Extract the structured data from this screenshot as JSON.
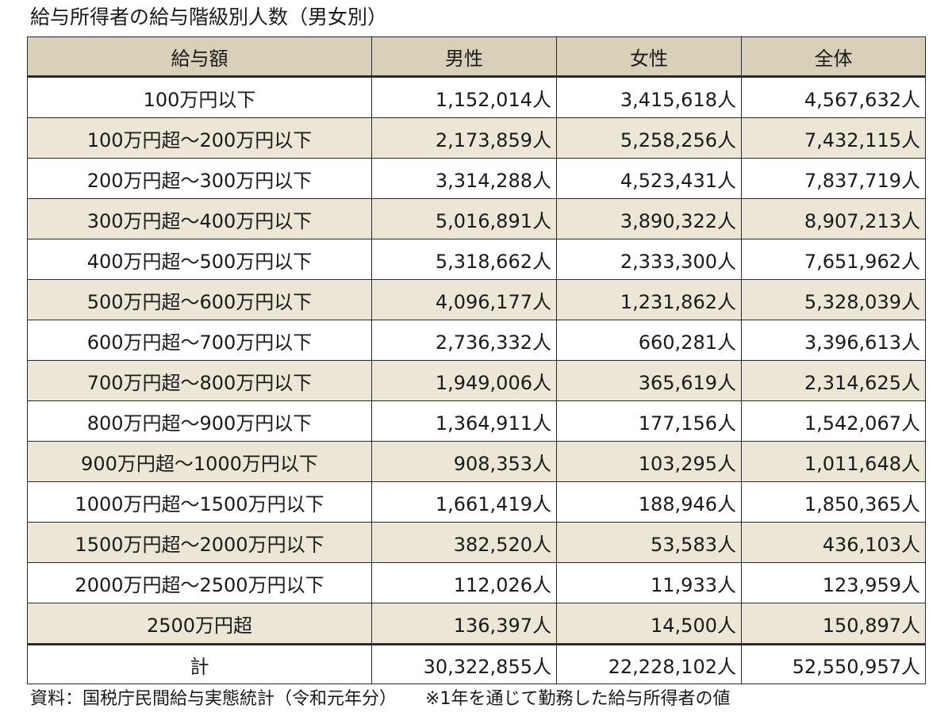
{
  "title": "給与所得者の給与階級別人数（男女別）",
  "table": {
    "headers": [
      "給与額",
      "男性",
      "女性",
      "全体"
    ],
    "rows": [
      {
        "label": "100万円以下",
        "male": "1,152,014人",
        "female": "3,415,618人",
        "total": "4,567,632人"
      },
      {
        "label": "100万円超～200万円以下",
        "male": "2,173,859人",
        "female": "5,258,256人",
        "total": "7,432,115人"
      },
      {
        "label": "200万円超～300万円以下",
        "male": "3,314,288人",
        "female": "4,523,431人",
        "total": "7,837,719人"
      },
      {
        "label": "300万円超～400万円以下",
        "male": "5,016,891人",
        "female": "3,890,322人",
        "total": "8,907,213人"
      },
      {
        "label": "400万円超～500万円以下",
        "male": "5,318,662人",
        "female": "2,333,300人",
        "total": "7,651,962人"
      },
      {
        "label": "500万円超～600万円以下",
        "male": "4,096,177人",
        "female": "1,231,862人",
        "total": "5,328,039人"
      },
      {
        "label": "600万円超～700万円以下",
        "male": "2,736,332人",
        "female": "660,281人",
        "total": "3,396,613人"
      },
      {
        "label": "700万円超～800万円以下",
        "male": "1,949,006人",
        "female": "365,619人",
        "total": "2,314,625人"
      },
      {
        "label": "800万円超～900万円以下",
        "male": "1,364,911人",
        "female": "177,156人",
        "total": "1,542,067人"
      },
      {
        "label": "900万円超～1000万円以下",
        "male": "908,353人",
        "female": "103,295人",
        "total": "1,011,648人"
      },
      {
        "label": "1000万円超～1500万円以下",
        "male": "1,661,419人",
        "female": "188,946人",
        "total": "1,850,365人"
      },
      {
        "label": "1500万円超～2000万円以下",
        "male": "382,520人",
        "female": "53,583人",
        "total": "436,103人"
      },
      {
        "label": "2000万円超～2500万円以下",
        "male": "112,026人",
        "female": "11,933人",
        "total": "123,959人"
      },
      {
        "label": "2500万円超",
        "male": "136,397人",
        "female": "14,500人",
        "total": "150,897人"
      }
    ],
    "total_row": {
      "label": "計",
      "male": "30,322,855人",
      "female": "22,228,102人",
      "total": "52,550,957人"
    }
  },
  "footnote": {
    "source": "資料：国税庁民間給与実態統計（令和元年分）",
    "note": "※1年を通じて勤務した給与所得者の値"
  },
  "colors": {
    "header_bg": "#d8d0b8",
    "stripe_bg": "#ece6d6",
    "border": "#2a2a2a"
  }
}
